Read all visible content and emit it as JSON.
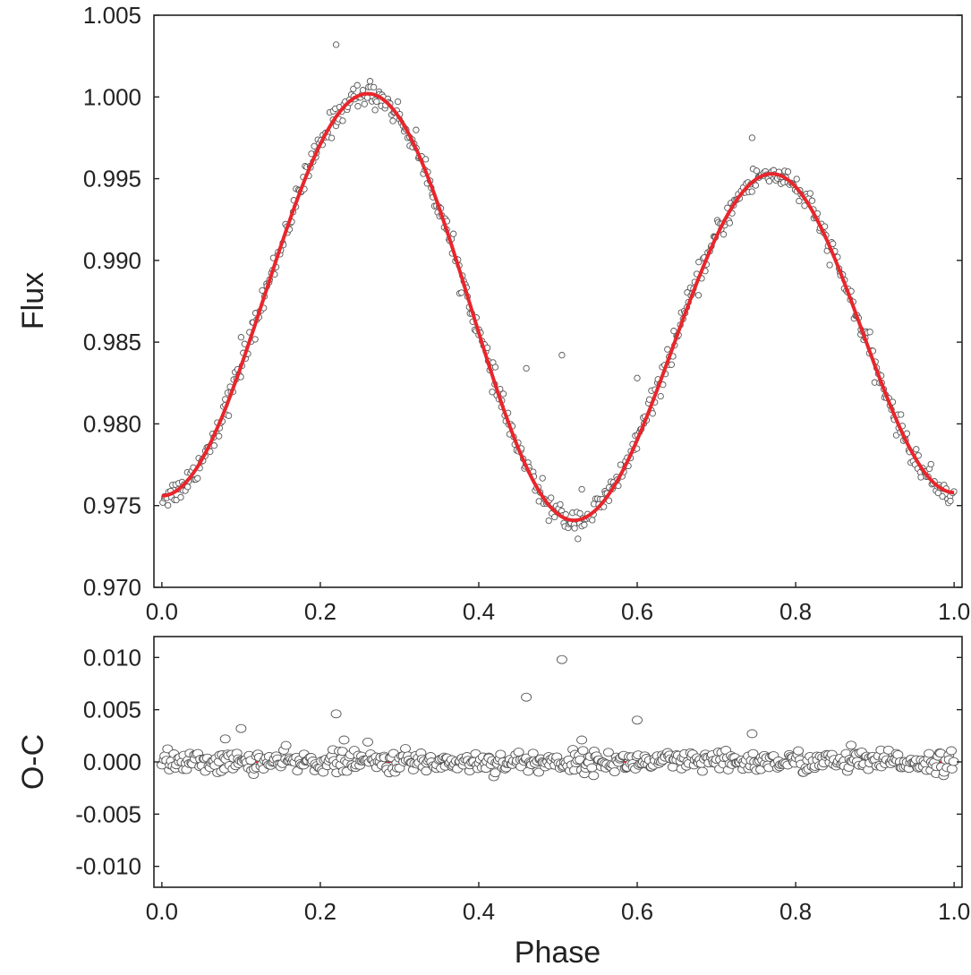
{
  "colors": {
    "model": "#e8262c",
    "points_edge": "#555555",
    "axis": "#222222"
  },
  "chart_data": [
    {
      "type": "scatter",
      "panel": "light-curve",
      "xlabel": "",
      "ylabel": "Flux",
      "xlim": [
        -0.01,
        1.01
      ],
      "ylim": [
        0.97,
        1.005
      ],
      "xticks": [
        0.0,
        0.2,
        0.4,
        0.6,
        0.8,
        1.0
      ],
      "xtick_labels": [
        "0.0",
        "0.2",
        "0.4",
        "0.6",
        "0.8",
        "1.0"
      ],
      "yticks": [
        0.97,
        0.975,
        0.98,
        0.985,
        0.99,
        0.995,
        1.0,
        1.005
      ],
      "ytick_labels": [
        "0.970",
        "0.975",
        "0.980",
        "0.985",
        "0.990",
        "0.995",
        "1.000",
        "1.005"
      ],
      "model_curve": {
        "name": "model fit",
        "x": [
          0.0,
          0.05,
          0.1,
          0.15,
          0.2,
          0.26,
          0.3,
          0.35,
          0.4,
          0.45,
          0.52,
          0.55,
          0.6,
          0.65,
          0.7,
          0.77,
          0.8,
          0.85,
          0.9,
          0.95,
          1.0
        ],
        "y": [
          0.9756,
          0.9775,
          0.983,
          0.9905,
          0.997,
          1.0002,
          0.9985,
          0.992,
          0.9835,
          0.977,
          0.9741,
          0.975,
          0.98,
          0.987,
          0.992,
          0.9953,
          0.9945,
          0.9905,
          0.984,
          0.9785,
          0.9758
        ]
      },
      "observations": {
        "name": "observed flux",
        "n_points": 620,
        "scatter_sigma": 0.0004,
        "outliers": [
          {
            "x": 0.22,
            "y": 1.0032
          },
          {
            "x": 0.1,
            "y": 0.9853
          },
          {
            "x": 0.08,
            "y": 0.9815
          },
          {
            "x": 0.46,
            "y": 0.9834
          },
          {
            "x": 0.505,
            "y": 0.9842
          },
          {
            "x": 0.6,
            "y": 0.9828
          },
          {
            "x": 0.745,
            "y": 0.9975
          },
          {
            "x": 0.53,
            "y": 0.976
          }
        ]
      }
    },
    {
      "type": "scatter",
      "panel": "residuals",
      "xlabel": "Phase",
      "ylabel": "O-C",
      "xlim": [
        -0.01,
        1.01
      ],
      "ylim": [
        -0.012,
        0.012
      ],
      "xticks": [
        0.0,
        0.2,
        0.4,
        0.6,
        0.8,
        1.0
      ],
      "xtick_labels": [
        "0.0",
        "0.2",
        "0.4",
        "0.6",
        "0.8",
        "1.0"
      ],
      "yticks": [
        0.01,
        0.005,
        0.0,
        -0.005,
        -0.01
      ],
      "ytick_labels": [
        "0.010",
        "0.005",
        "0.000",
        "-0.005",
        "-0.010"
      ],
      "zero_line": {
        "y": 0.0
      },
      "observations": {
        "name": "residuals",
        "n_points": 620,
        "scatter_sigma": 0.0005,
        "outliers": [
          {
            "x": 0.22,
            "y": 0.0046
          },
          {
            "x": 0.1,
            "y": 0.0032
          },
          {
            "x": 0.08,
            "y": 0.0022
          },
          {
            "x": 0.23,
            "y": 0.0021
          },
          {
            "x": 0.26,
            "y": 0.0019
          },
          {
            "x": 0.46,
            "y": 0.0062
          },
          {
            "x": 0.505,
            "y": 0.0098
          },
          {
            "x": 0.53,
            "y": 0.0021
          },
          {
            "x": 0.6,
            "y": 0.004
          },
          {
            "x": 0.745,
            "y": 0.0027
          },
          {
            "x": 0.87,
            "y": 0.0016
          }
        ]
      }
    }
  ]
}
